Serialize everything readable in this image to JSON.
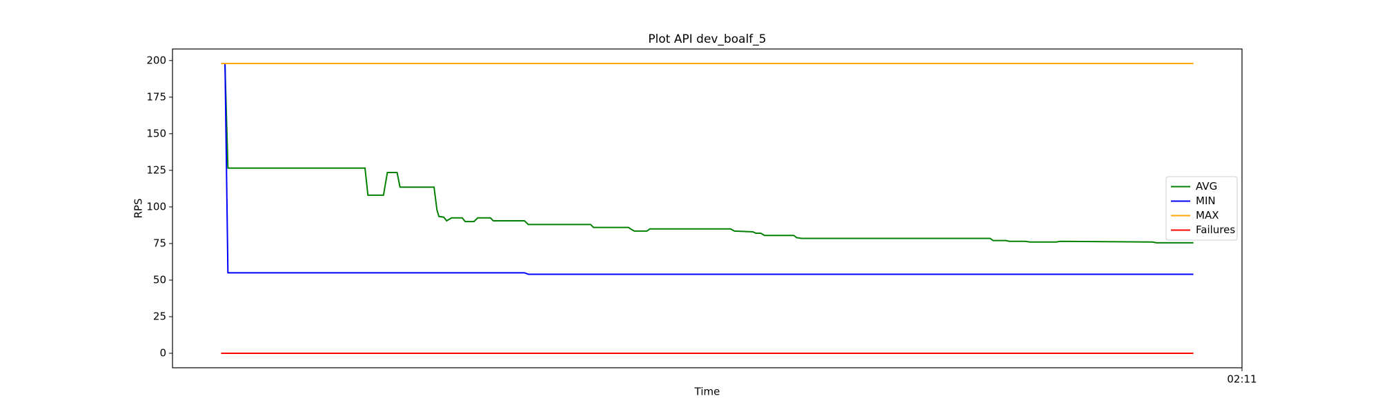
{
  "chart_data": {
    "type": "line",
    "title": "Plot API dev_boalf_5",
    "xlabel": "Time",
    "ylabel": "RPS",
    "x": [
      0,
      0.4,
      0.7,
      0.8,
      14.8,
      15.1,
      16.7,
      17.1,
      18.1,
      18.4,
      21.9,
      22.2,
      22.4,
      22.9,
      23.2,
      23.7,
      24.8,
      25.1,
      26.0,
      26.4,
      27.7,
      28.0,
      31.2,
      31.6,
      38.0,
      38.3,
      41.9,
      42.1,
      42.5,
      43.8,
      44.1,
      52.4,
      52.8,
      54.7,
      55.0,
      55.5,
      55.9,
      58.9,
      59.2,
      59.7,
      79.1,
      79.4,
      80.7,
      81.1,
      82.7,
      83.2,
      85.9,
      86.3,
      95.8,
      96.2,
      100
    ],
    "series": [
      {
        "name": "AVG",
        "color": "#008000",
        "values": [
          null,
          197,
          126.5,
          126.5,
          126.5,
          108,
          108,
          123.5,
          123.5,
          113.5,
          113.5,
          98,
          93.5,
          93,
          90.5,
          92.5,
          92.5,
          90,
          90,
          92.5,
          92.5,
          90.5,
          90.5,
          88,
          88,
          86,
          86,
          85,
          83.5,
          83.5,
          85,
          85,
          83.5,
          83,
          82,
          82,
          80.5,
          80.5,
          79,
          78.5,
          78.5,
          77,
          77,
          76.5,
          76.5,
          76,
          76,
          76.5,
          76,
          75.5,
          75.5
        ]
      },
      {
        "name": "MIN",
        "color": "#0000ff",
        "values": [
          null,
          198,
          55,
          55,
          55,
          55,
          55,
          55,
          55,
          55,
          55,
          55,
          55,
          55,
          55,
          55,
          55,
          55,
          55,
          55,
          55,
          55,
          55,
          54,
          54,
          54,
          54,
          54,
          54,
          54,
          54,
          54,
          54,
          54,
          54,
          54,
          54,
          54,
          54,
          54,
          54,
          54,
          54,
          54,
          54,
          54,
          54,
          54,
          54,
          54,
          54
        ]
      },
      {
        "name": "MAX",
        "color": "#ffa500",
        "values": [
          198,
          198,
          198,
          198,
          198,
          198,
          198,
          198,
          198,
          198,
          198,
          198,
          198,
          198,
          198,
          198,
          198,
          198,
          198,
          198,
          198,
          198,
          198,
          198,
          198,
          198,
          198,
          198,
          198,
          198,
          198,
          198,
          198,
          198,
          198,
          198,
          198,
          198,
          198,
          198,
          198,
          198,
          198,
          198,
          198,
          198,
          198,
          198,
          198,
          198,
          198
        ]
      },
      {
        "name": "Failures",
        "color": "#ff0000",
        "values": [
          0,
          0,
          0,
          0,
          0,
          0,
          0,
          0,
          0,
          0,
          0,
          0,
          0,
          0,
          0,
          0,
          0,
          0,
          0,
          0,
          0,
          0,
          0,
          0,
          0,
          0,
          0,
          0,
          0,
          0,
          0,
          0,
          0,
          0,
          0,
          0,
          0,
          0,
          0,
          0,
          0,
          0,
          0,
          0,
          0,
          0,
          0,
          0,
          0,
          0,
          0
        ]
      }
    ],
    "xlim": [
      -5,
      105
    ],
    "xticks": [
      {
        "value": 105,
        "label": "02:11"
      }
    ],
    "ylim": [
      -9.9,
      207.9
    ],
    "yticks": [
      0,
      25,
      50,
      75,
      100,
      125,
      150,
      175,
      200
    ],
    "grid": false,
    "legend": "center right"
  }
}
